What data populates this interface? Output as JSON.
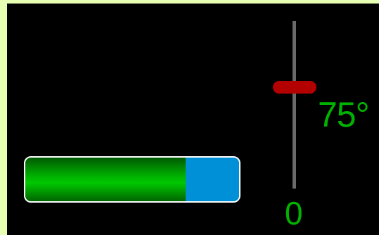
{
  "colors": {
    "background": "#e6ffb3",
    "panel": "#000000",
    "progress_fill": "#00b000",
    "progress_remaining": "#0090d8",
    "progress_border": "#ffffff",
    "slider_track": "#6a6a6a",
    "slider_thumb": "#b30000",
    "text": "#00b300"
  },
  "progress": {
    "value": 0.75
  },
  "slider": {
    "value_label": "75°",
    "min_label": "0",
    "value": 75,
    "min": 0,
    "max": 100
  }
}
